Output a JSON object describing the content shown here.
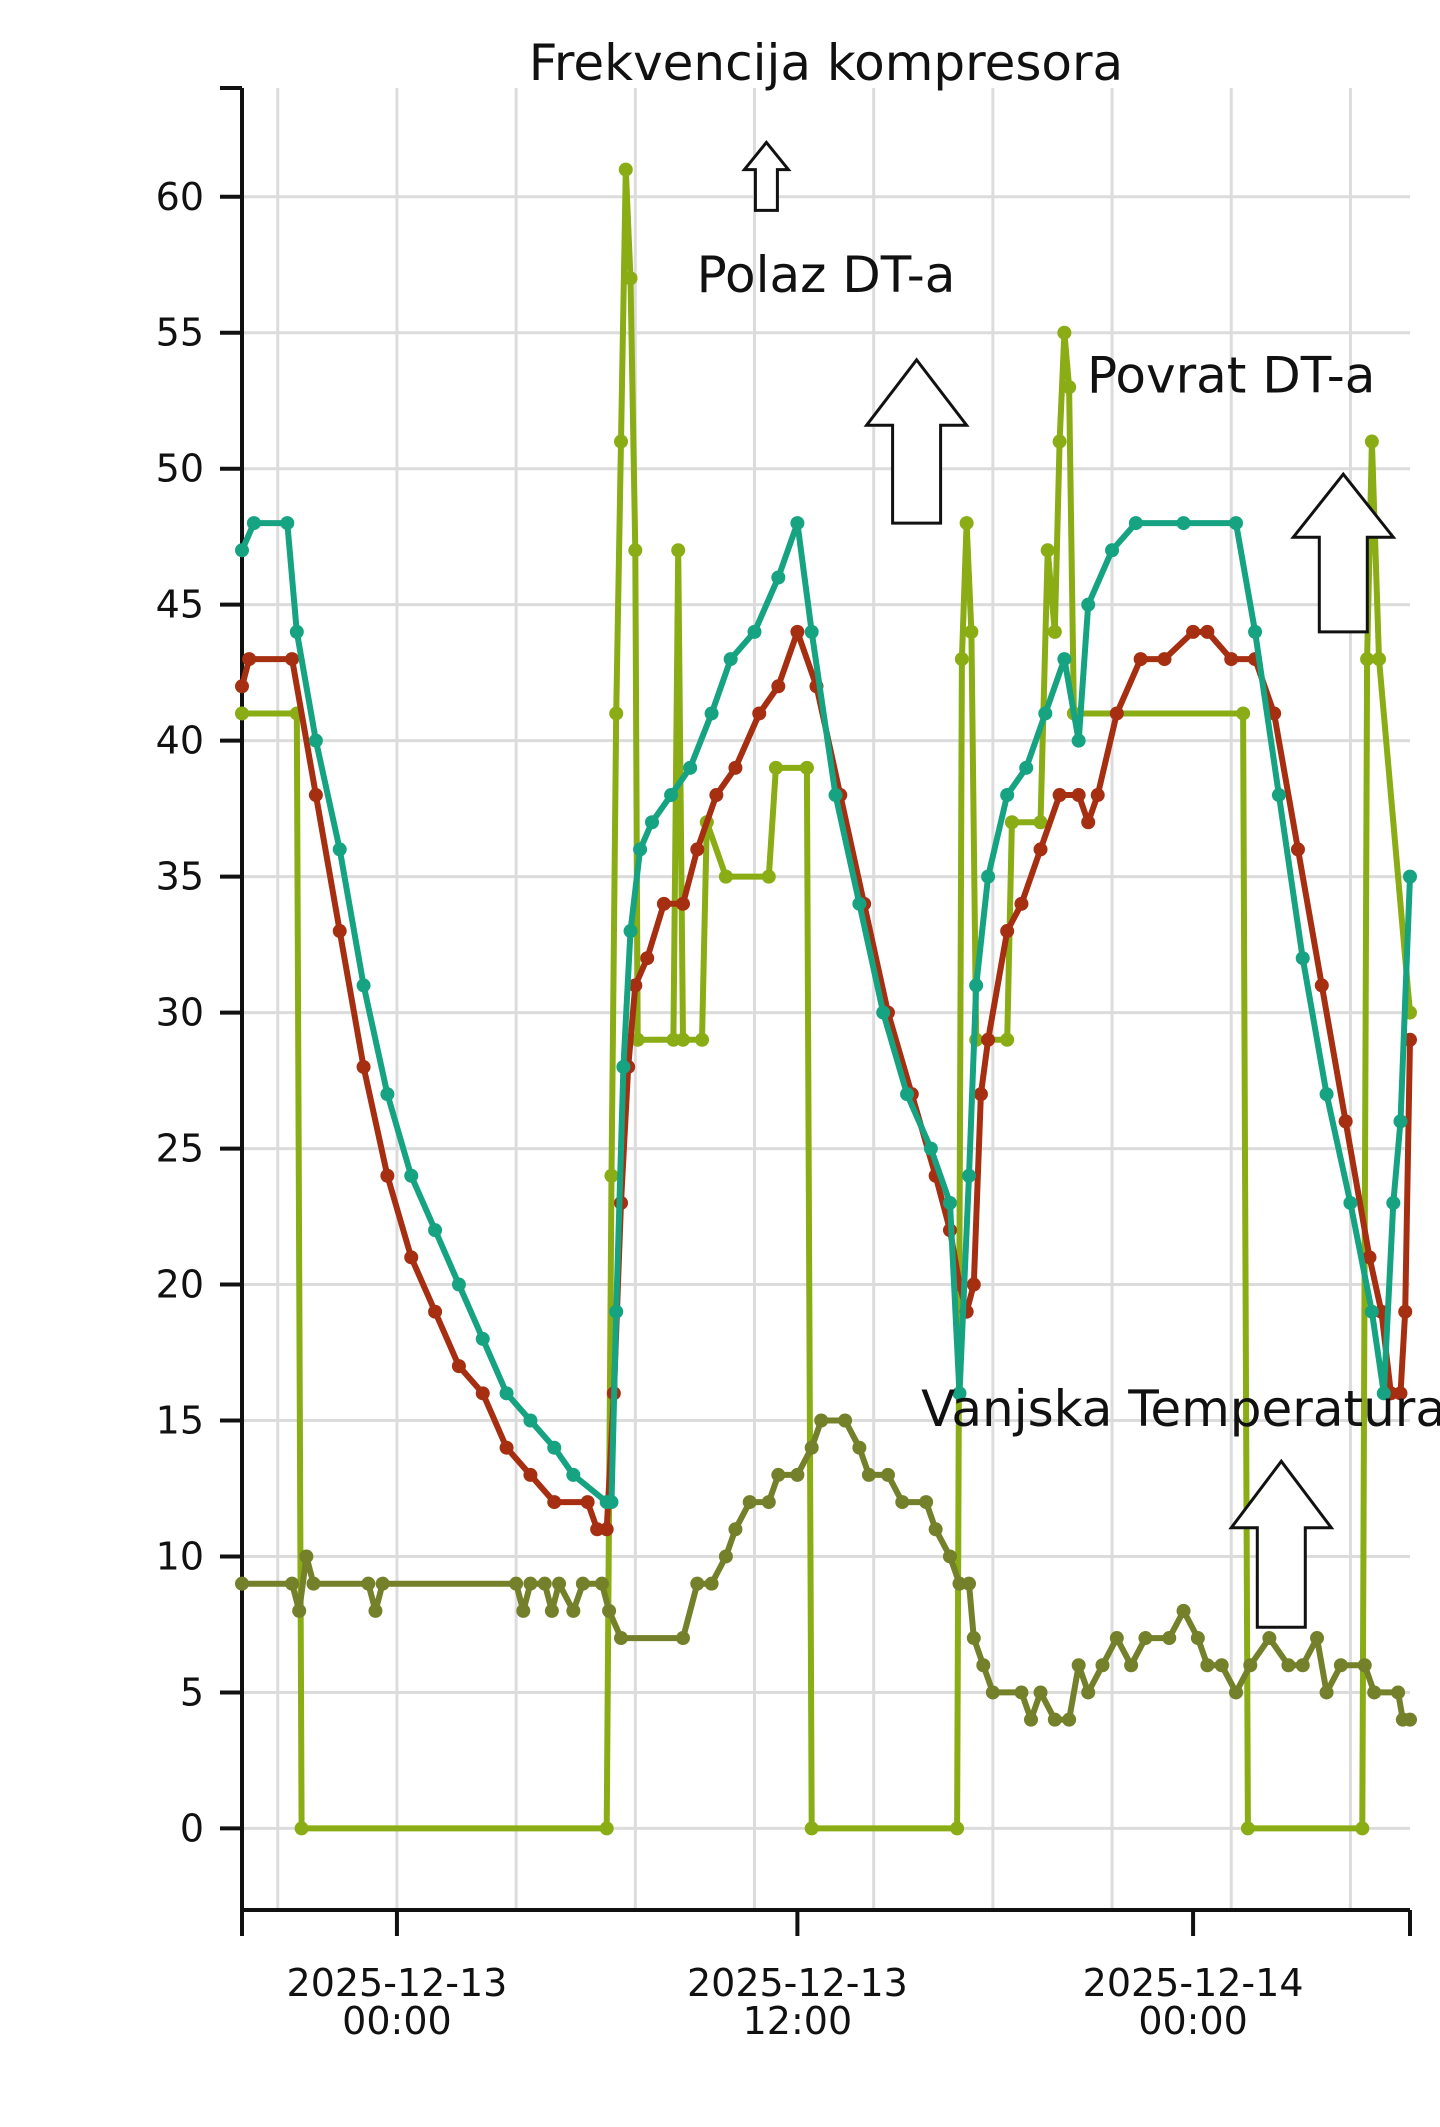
{
  "chart_data": {
    "type": "line",
    "title": "",
    "xlabel": "",
    "ylabel": "",
    "x_range_hours": [
      -6.5,
      42.5
    ],
    "ylim": [
      -3,
      64
    ],
    "y_ticks": [
      0,
      5,
      10,
      15,
      20,
      25,
      30,
      35,
      40,
      45,
      50,
      55,
      60
    ],
    "x_ticks": [
      {
        "hour": 0,
        "line1": "2025-12-13",
        "line2": "00:00"
      },
      {
        "hour": 16.8,
        "line1": "2025-12-13",
        "line2": "12:00"
      },
      {
        "hour": 33.4,
        "line1": "2025-12-14",
        "line2": "00:00"
      }
    ],
    "grid": true,
    "annotations": [
      {
        "text": "Frekvencija kompresora",
        "x": 18.0,
        "y": 64.3
      },
      {
        "text": "Polaz DT-a",
        "x": 18.0,
        "y": 56.5
      },
      {
        "text": "Povrat DT-a",
        "x": 35.0,
        "y": 52.8
      },
      {
        "text": "Vanjska Temperatura",
        "x": 33.0,
        "y": 14.8
      }
    ],
    "arrows": [
      {
        "x": 15.5,
        "y_tip": 62,
        "y_base": 59.5,
        "size": "small"
      },
      {
        "x": 21.8,
        "y_tip": 54,
        "y_base": 48,
        "size": "large"
      },
      {
        "x": 39.7,
        "y_tip": 49.8,
        "y_base": 44,
        "size": "large"
      },
      {
        "x": 37.1,
        "y_tip": 13.5,
        "y_base": 7.4,
        "size": "large"
      }
    ],
    "series": [
      {
        "name": "Frekvencija kompresora",
        "color": "#8aac14",
        "points": [
          [
            -6.5,
            41
          ],
          [
            -4.2,
            41
          ],
          [
            -4.0,
            0
          ],
          [
            8.8,
            0
          ],
          [
            9.0,
            24
          ],
          [
            9.2,
            41
          ],
          [
            9.4,
            51
          ],
          [
            9.6,
            61
          ],
          [
            9.8,
            57
          ],
          [
            10.0,
            47
          ],
          [
            10.1,
            29
          ],
          [
            11.6,
            29
          ],
          [
            11.8,
            47
          ],
          [
            12.0,
            29
          ],
          [
            12.8,
            29
          ],
          [
            13.0,
            37
          ],
          [
            13.8,
            35
          ],
          [
            15.6,
            35
          ],
          [
            15.9,
            39
          ],
          [
            17.2,
            39
          ],
          [
            17.4,
            0
          ],
          [
            23.5,
            0
          ],
          [
            23.7,
            43
          ],
          [
            23.9,
            48
          ],
          [
            24.1,
            44
          ],
          [
            24.3,
            29
          ],
          [
            25.6,
            29
          ],
          [
            25.8,
            37
          ],
          [
            27.0,
            37
          ],
          [
            27.3,
            47
          ],
          [
            27.6,
            44
          ],
          [
            27.8,
            51
          ],
          [
            28.0,
            55
          ],
          [
            28.2,
            53
          ],
          [
            28.4,
            41
          ],
          [
            35.5,
            41
          ],
          [
            35.7,
            0
          ],
          [
            40.5,
            0
          ],
          [
            40.7,
            43
          ],
          [
            40.9,
            51
          ],
          [
            41.2,
            43
          ],
          [
            42.5,
            30
          ]
        ]
      },
      {
        "name": "Povrat DT-a",
        "color": "#a62f12",
        "points": [
          [
            -6.5,
            42
          ],
          [
            -6.2,
            43
          ],
          [
            -4.4,
            43
          ],
          [
            -3.4,
            38
          ],
          [
            -2.4,
            33
          ],
          [
            -1.4,
            28
          ],
          [
            -0.4,
            24
          ],
          [
            0.6,
            21
          ],
          [
            1.6,
            19
          ],
          [
            2.6,
            17
          ],
          [
            3.6,
            16
          ],
          [
            4.6,
            14
          ],
          [
            5.6,
            13
          ],
          [
            6.6,
            12
          ],
          [
            8.0,
            12
          ],
          [
            8.4,
            11
          ],
          [
            8.8,
            11
          ],
          [
            9.1,
            16
          ],
          [
            9.4,
            23
          ],
          [
            9.7,
            28
          ],
          [
            10.0,
            31
          ],
          [
            10.5,
            32
          ],
          [
            11.2,
            34
          ],
          [
            12.0,
            34
          ],
          [
            12.6,
            36
          ],
          [
            13.4,
            38
          ],
          [
            14.2,
            39
          ],
          [
            15.2,
            41
          ],
          [
            16.0,
            42
          ],
          [
            16.8,
            44
          ],
          [
            17.6,
            42
          ],
          [
            18.6,
            38
          ],
          [
            19.6,
            34
          ],
          [
            20.6,
            30
          ],
          [
            21.6,
            27
          ],
          [
            22.6,
            24
          ],
          [
            23.2,
            22
          ],
          [
            23.6,
            20
          ],
          [
            23.9,
            19
          ],
          [
            24.2,
            20
          ],
          [
            24.5,
            27
          ],
          [
            24.8,
            29
          ],
          [
            25.6,
            33
          ],
          [
            26.2,
            34
          ],
          [
            27.0,
            36
          ],
          [
            27.8,
            38
          ],
          [
            28.6,
            38
          ],
          [
            29.0,
            37
          ],
          [
            29.4,
            38
          ],
          [
            30.2,
            41
          ],
          [
            31.2,
            43
          ],
          [
            32.2,
            43
          ],
          [
            33.4,
            44
          ],
          [
            34.0,
            44
          ],
          [
            35.0,
            43
          ],
          [
            36.0,
            43
          ],
          [
            36.8,
            41
          ],
          [
            37.8,
            36
          ],
          [
            38.8,
            31
          ],
          [
            39.8,
            26
          ],
          [
            40.8,
            21
          ],
          [
            41.3,
            19
          ],
          [
            41.7,
            16
          ],
          [
            42.1,
            16
          ],
          [
            42.3,
            19
          ],
          [
            42.5,
            29
          ]
        ]
      },
      {
        "name": "Polaz DT-a",
        "color": "#16a382",
        "points": [
          [
            -6.5,
            47
          ],
          [
            -6.0,
            48
          ],
          [
            -4.6,
            48
          ],
          [
            -4.2,
            44
          ],
          [
            -3.4,
            40
          ],
          [
            -2.4,
            36
          ],
          [
            -1.4,
            31
          ],
          [
            -0.4,
            27
          ],
          [
            0.6,
            24
          ],
          [
            1.6,
            22
          ],
          [
            2.6,
            20
          ],
          [
            3.6,
            18
          ],
          [
            4.6,
            16
          ],
          [
            5.6,
            15
          ],
          [
            6.6,
            14
          ],
          [
            7.4,
            13
          ],
          [
            8.8,
            12
          ],
          [
            9.0,
            12
          ],
          [
            9.2,
            19
          ],
          [
            9.5,
            28
          ],
          [
            9.8,
            33
          ],
          [
            10.2,
            36
          ],
          [
            10.7,
            37
          ],
          [
            11.5,
            38
          ],
          [
            12.3,
            39
          ],
          [
            13.2,
            41
          ],
          [
            14.0,
            43
          ],
          [
            15.0,
            44
          ],
          [
            16.0,
            46
          ],
          [
            16.8,
            48
          ],
          [
            17.4,
            44
          ],
          [
            18.4,
            38
          ],
          [
            19.4,
            34
          ],
          [
            20.4,
            30
          ],
          [
            21.4,
            27
          ],
          [
            22.4,
            25
          ],
          [
            23.2,
            23
          ],
          [
            23.6,
            16
          ],
          [
            24.0,
            24
          ],
          [
            24.3,
            31
          ],
          [
            24.8,
            35
          ],
          [
            25.6,
            38
          ],
          [
            26.4,
            39
          ],
          [
            27.2,
            41
          ],
          [
            28.0,
            43
          ],
          [
            28.6,
            40
          ],
          [
            29.0,
            45
          ],
          [
            30.0,
            47
          ],
          [
            31.0,
            48
          ],
          [
            33.0,
            48
          ],
          [
            35.2,
            48
          ],
          [
            36.0,
            44
          ],
          [
            37.0,
            38
          ],
          [
            38.0,
            32
          ],
          [
            39.0,
            27
          ],
          [
            40.0,
            23
          ],
          [
            40.9,
            19
          ],
          [
            41.4,
            16
          ],
          [
            41.8,
            23
          ],
          [
            42.1,
            26
          ],
          [
            42.5,
            35
          ]
        ]
      },
      {
        "name": "Vanjska Temperatura",
        "color": "#74802a",
        "points": [
          [
            -6.5,
            9
          ],
          [
            -4.4,
            9
          ],
          [
            -4.1,
            8
          ],
          [
            -3.8,
            10
          ],
          [
            -3.5,
            9
          ],
          [
            -1.2,
            9
          ],
          [
            -0.9,
            8
          ],
          [
            -0.6,
            9
          ],
          [
            5.0,
            9
          ],
          [
            5.3,
            8
          ],
          [
            5.6,
            9
          ],
          [
            6.2,
            9
          ],
          [
            6.5,
            8
          ],
          [
            6.8,
            9
          ],
          [
            7.4,
            8
          ],
          [
            7.8,
            9
          ],
          [
            8.6,
            9
          ],
          [
            8.9,
            8
          ],
          [
            9.4,
            7
          ],
          [
            12.0,
            7
          ],
          [
            12.6,
            9
          ],
          [
            13.2,
            9
          ],
          [
            13.8,
            10
          ],
          [
            14.2,
            11
          ],
          [
            14.8,
            12
          ],
          [
            15.6,
            12
          ],
          [
            16.0,
            13
          ],
          [
            16.8,
            13
          ],
          [
            17.4,
            14
          ],
          [
            17.8,
            15
          ],
          [
            18.8,
            15
          ],
          [
            19.4,
            14
          ],
          [
            19.8,
            13
          ],
          [
            20.6,
            13
          ],
          [
            21.2,
            12
          ],
          [
            22.2,
            12
          ],
          [
            22.6,
            11
          ],
          [
            23.2,
            10
          ],
          [
            23.6,
            9
          ],
          [
            24.0,
            9
          ],
          [
            24.2,
            7
          ],
          [
            24.6,
            6
          ],
          [
            25.0,
            5
          ],
          [
            26.2,
            5
          ],
          [
            26.6,
            4
          ],
          [
            27.0,
            5
          ],
          [
            27.6,
            4
          ],
          [
            28.2,
            4
          ],
          [
            28.6,
            6
          ],
          [
            29.0,
            5
          ],
          [
            29.6,
            6
          ],
          [
            30.2,
            7
          ],
          [
            30.8,
            6
          ],
          [
            31.4,
            7
          ],
          [
            32.4,
            7
          ],
          [
            33.0,
            8
          ],
          [
            33.6,
            7
          ],
          [
            34.0,
            6
          ],
          [
            34.6,
            6
          ],
          [
            35.2,
            5
          ],
          [
            35.8,
            6
          ],
          [
            36.6,
            7
          ],
          [
            37.4,
            6
          ],
          [
            38.0,
            6
          ],
          [
            38.6,
            7
          ],
          [
            39.0,
            5
          ],
          [
            39.6,
            6
          ],
          [
            40.6,
            6
          ],
          [
            41.0,
            5
          ],
          [
            42.0,
            5
          ],
          [
            42.2,
            4
          ],
          [
            42.5,
            4
          ]
        ]
      }
    ]
  }
}
